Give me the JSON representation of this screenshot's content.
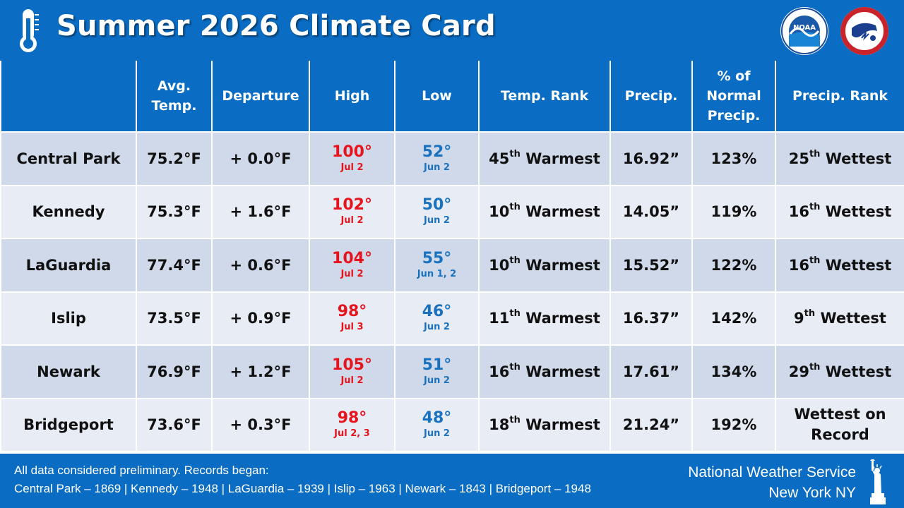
{
  "header": {
    "title": "Summer 2026 Climate Card",
    "noaa_logo_text": "NOAA",
    "nws_logo_text": "NATIONAL WEATHER SERVICE"
  },
  "columns": [
    "",
    "Avg.\nTemp.",
    "Departure",
    "High",
    "Low",
    "Temp. Rank",
    "Precip.",
    "% of\nNormal\nPrecip.",
    "Precip. Rank"
  ],
  "rows": [
    {
      "station": "Central Park",
      "avg": "75.2°F",
      "dep": "+ 0.0°F",
      "high": "100°",
      "high_date": "Jul 2",
      "low": "52°",
      "low_date": "Jun 2",
      "trank_n": "45",
      "trank_suf": "th",
      "trank_w": " Warmest",
      "precip": "16.92”",
      "pct": "123%",
      "prank_n": "25",
      "prank_suf": "th",
      "prank_w": " Wettest"
    },
    {
      "station": "Kennedy",
      "avg": "75.3°F",
      "dep": "+ 1.6°F",
      "high": "102°",
      "high_date": "Jul 2",
      "low": "50°",
      "low_date": "Jun 2",
      "trank_n": "10",
      "trank_suf": "th",
      "trank_w": " Warmest",
      "precip": "14.05”",
      "pct": "119%",
      "prank_n": "16",
      "prank_suf": "th",
      "prank_w": " Wettest"
    },
    {
      "station": "LaGuardia",
      "avg": "77.4°F",
      "dep": "+ 0.6°F",
      "high": "104°",
      "high_date": "Jul 2",
      "low": "55°",
      "low_date": "Jun 1, 2",
      "trank_n": "10",
      "trank_suf": "th",
      "trank_w": " Warmest",
      "precip": "15.52”",
      "pct": "122%",
      "prank_n": "16",
      "prank_suf": "th",
      "prank_w": " Wettest"
    },
    {
      "station": "Islip",
      "avg": "73.5°F",
      "dep": "+ 0.9°F",
      "high": "98°",
      "high_date": "Jul 3",
      "low": "46°",
      "low_date": "Jun 2",
      "trank_n": "11",
      "trank_suf": "th",
      "trank_w": " Warmest",
      "precip": "16.37”",
      "pct": "142%",
      "prank_n": "9",
      "prank_suf": "th",
      "prank_w": " Wettest"
    },
    {
      "station": "Newark",
      "avg": "76.9°F",
      "dep": "+ 1.2°F",
      "high": "105°",
      "high_date": "Jul 2",
      "low": "51°",
      "low_date": "Jun 2",
      "trank_n": "16",
      "trank_suf": "th",
      "trank_w": " Warmest",
      "precip": "17.61”",
      "pct": "134%",
      "prank_n": "29",
      "prank_suf": "th",
      "prank_w": " Wettest"
    },
    {
      "station": "Bridgeport",
      "avg": "73.6°F",
      "dep": "+ 0.3°F",
      "high": "98°",
      "high_date": "Jul 2, 3",
      "low": "48°",
      "low_date": "Jun 2",
      "trank_n": "18",
      "trank_suf": "th",
      "trank_w": " Warmest",
      "precip": "21.24”",
      "pct": "192%",
      "prank_line1": "Wettest on",
      "prank_line2": "Record"
    }
  ],
  "footer": {
    "note_line1": "All data considered preliminary. Records began:",
    "note_line2": "Central Park – 1869  |  Kennedy – 1948  |  LaGuardia – 1939  |  Islip – 1963  |  Newark – 1843  |  Bridgeport – 1948",
    "org_line1": "National Weather Service",
    "org_line2": "New York NY"
  },
  "colors": {
    "brand_blue": "#0a6cc2",
    "row_odd": "#cfd9ea",
    "row_even": "#e8ecf5",
    "high_red": "#e6141d",
    "low_blue": "#1a72bf",
    "record_green": "#3f6226"
  },
  "icons": [
    "thermometer-icon",
    "noaa-logo",
    "nws-logo",
    "statue-of-liberty-icon"
  ]
}
